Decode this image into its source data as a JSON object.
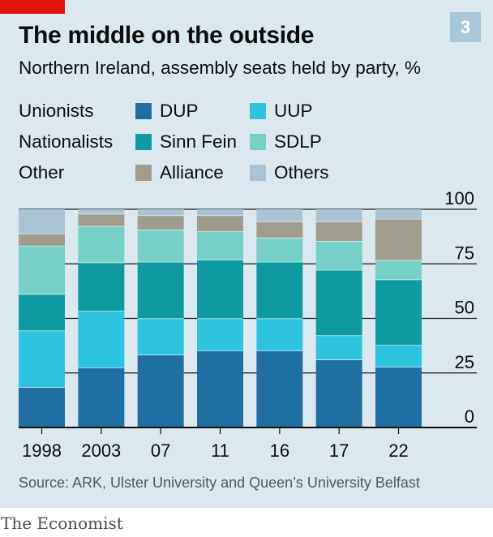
{
  "header": {
    "title": "The middle on the outside",
    "subtitle": "Northern Ireland, assembly seats held by party, %",
    "badge": "3"
  },
  "legend": {
    "groups": [
      {
        "label": "Unionists",
        "items": [
          {
            "label": "DUP",
            "color": "#1f6fa3"
          },
          {
            "label": "UUP",
            "color": "#2ec4e0"
          }
        ]
      },
      {
        "label": "Nationalists",
        "items": [
          {
            "label": "Sinn Fein",
            "color": "#0e9aa0"
          },
          {
            "label": "SDLP",
            "color": "#76d0c8"
          }
        ]
      },
      {
        "label": "Other",
        "items": [
          {
            "label": "Alliance",
            "color": "#a19d8e"
          },
          {
            "label": "Others",
            "color": "#a9c2d4"
          }
        ]
      }
    ]
  },
  "footer": {
    "source": "Source: ARK, Ulster University and Queen’s University Belfast",
    "brand": "The Economist"
  },
  "chart_data": {
    "type": "bar",
    "stacked": true,
    "categories": [
      "1998",
      "2003",
      "07",
      "11",
      "16",
      "17",
      "22"
    ],
    "series": [
      {
        "name": "DUP",
        "color": "#1f6fa3",
        "values": [
          18.5,
          27.5,
          33.3,
          35.2,
          35.2,
          31.1,
          27.8
        ]
      },
      {
        "name": "UUP",
        "color": "#2ec4e0",
        "values": [
          25.9,
          25.9,
          16.7,
          14.8,
          14.8,
          11.1,
          10.0
        ]
      },
      {
        "name": "Sinn Fein",
        "color": "#0e9aa0",
        "values": [
          16.7,
          22.2,
          25.9,
          26.9,
          25.9,
          30.0,
          30.0
        ]
      },
      {
        "name": "SDLP",
        "color": "#76d0c8",
        "values": [
          22.2,
          16.7,
          14.8,
          12.9,
          11.1,
          13.3,
          8.9
        ]
      },
      {
        "name": "Alliance",
        "color": "#a19d8e",
        "values": [
          5.6,
          5.6,
          6.5,
          7.4,
          7.4,
          8.9,
          18.9
        ]
      },
      {
        "name": "Others",
        "color": "#a9c2d4",
        "values": [
          11.1,
          2.1,
          2.8,
          2.8,
          5.6,
          5.6,
          4.4
        ]
      }
    ],
    "ylim": [
      0,
      100
    ],
    "yticks": [
      0,
      25,
      50,
      75,
      100
    ],
    "y_axis_position": "right",
    "grid": true
  }
}
